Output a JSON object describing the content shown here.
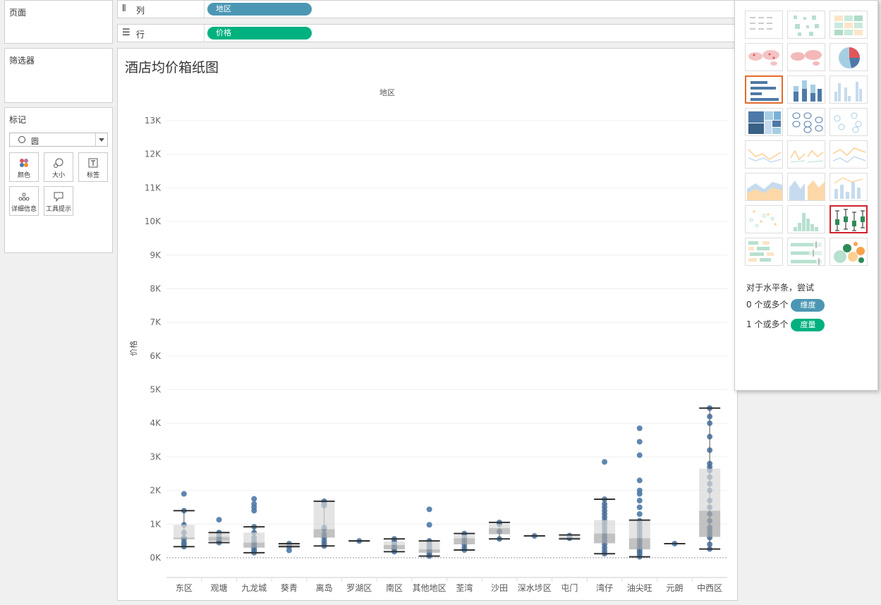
{
  "left_panels": {
    "pages": {
      "title": "页面"
    },
    "filters": {
      "title": "筛选器"
    },
    "marks": {
      "title": "标记",
      "type": "圆",
      "buttons": [
        {
          "label": "颜色",
          "icon": "color-icon"
        },
        {
          "label": "大小",
          "icon": "size-icon"
        },
        {
          "label": "标签",
          "icon": "label-icon"
        },
        {
          "label": "详细信息",
          "icon": "detail-icon"
        },
        {
          "label": "工具提示",
          "icon": "tooltip-icon"
        }
      ]
    }
  },
  "shelves": {
    "columns": {
      "label": "列",
      "pill": "地区"
    },
    "rows": {
      "label": "行",
      "pill": "价格"
    }
  },
  "worksheet": {
    "title": "酒店均价箱纸图"
  },
  "chart_data": {
    "type": "boxplot",
    "xlabel": "地区",
    "ylabel": "价格",
    "ylim": [
      -700,
      13500
    ],
    "yticks": [
      0,
      1000,
      2000,
      3000,
      4000,
      5000,
      6000,
      7000,
      8000,
      9000,
      10000,
      11000,
      12000,
      13000
    ],
    "ytick_labels": [
      "0K",
      "1K",
      "2K",
      "3K",
      "4K",
      "5K",
      "6K",
      "7K",
      "8K",
      "9K",
      "10K",
      "11K",
      "12K",
      "13K"
    ],
    "point_color": "#4e79a7",
    "categories": [
      "东区",
      "观塘",
      "九龙城",
      "葵青",
      "离岛",
      "罗湖区",
      "南区",
      "其他地区",
      "荃湾",
      "沙田",
      "深水埗区",
      "屯门",
      "湾仔",
      "油尖旺",
      "元朗",
      "中西区"
    ],
    "boxes": [
      {
        "min": 330,
        "q1": 550,
        "median": 600,
        "q3": 980,
        "max": 1400,
        "points": [
          330,
          400,
          450,
          550,
          600,
          750,
          980,
          1400,
          1900
        ]
      },
      {
        "min": 450,
        "q1": 500,
        "median": 620,
        "q3": 730,
        "max": 750,
        "points": [
          450,
          500,
          580,
          620,
          700,
          730,
          750,
          1130
        ]
      },
      {
        "min": 150,
        "q1": 300,
        "median": 450,
        "q3": 750,
        "max": 920,
        "points": [
          150,
          200,
          250,
          300,
          350,
          400,
          450,
          500,
          600,
          750,
          920,
          1400,
          1500,
          1600,
          1750
        ]
      },
      {
        "min": 330,
        "q1": 350,
        "median": 380,
        "q3": 410,
        "max": 420,
        "points": [
          220,
          330,
          380,
          420
        ]
      },
      {
        "min": 350,
        "q1": 600,
        "median": 850,
        "q3": 1650,
        "max": 1680,
        "points": [
          350,
          420,
          500,
          600,
          700,
          850,
          900,
          1550,
          1600,
          1650,
          1680
        ]
      },
      {
        "min": 500,
        "q1": 500,
        "median": 500,
        "q3": 500,
        "max": 500,
        "points": [
          500
        ]
      },
      {
        "min": 180,
        "q1": 250,
        "median": 380,
        "q3": 480,
        "max": 560,
        "points": [
          180,
          250,
          300,
          380,
          450,
          480,
          560
        ]
      },
      {
        "min": 50,
        "q1": 150,
        "median": 250,
        "q3": 480,
        "max": 500,
        "points": [
          50,
          100,
          150,
          200,
          250,
          300,
          350,
          400,
          480,
          500,
          980,
          1440
        ]
      },
      {
        "min": 230,
        "q1": 400,
        "median": 580,
        "q3": 680,
        "max": 720,
        "points": [
          230,
          300,
          400,
          500,
          580,
          680,
          720
        ]
      },
      {
        "min": 560,
        "q1": 700,
        "median": 880,
        "q3": 1000,
        "max": 1050,
        "points": [
          560,
          780,
          1000,
          1050
        ]
      },
      {
        "min": 650,
        "q1": 650,
        "median": 650,
        "q3": 650,
        "max": 650,
        "points": [
          650
        ]
      },
      {
        "min": 560,
        "q1": 580,
        "median": 600,
        "q3": 660,
        "max": 680,
        "points": [
          580,
          600,
          660
        ]
      },
      {
        "min": 120,
        "q1": 430,
        "median": 720,
        "q3": 1120,
        "max": 1740,
        "points": [
          120,
          200,
          300,
          400,
          500,
          600,
          700,
          800,
          900,
          1000,
          1100,
          1200,
          1300,
          1400,
          1500,
          1600,
          1740,
          2850
        ]
      },
      {
        "min": 30,
        "q1": 250,
        "median": 580,
        "q3": 1110,
        "max": 1120,
        "points": [
          30,
          100,
          150,
          200,
          250,
          300,
          400,
          500,
          600,
          700,
          800,
          900,
          1000,
          1100,
          1300,
          1500,
          1700,
          1900,
          2000,
          2300,
          3050,
          3450,
          3850
        ]
      },
      {
        "min": 420,
        "q1": 420,
        "median": 420,
        "q3": 420,
        "max": 420,
        "points": [
          420
        ]
      },
      {
        "min": 260,
        "q1": 620,
        "median": 1400,
        "q3": 2650,
        "max": 4450,
        "points": [
          260,
          400,
          600,
          700,
          800,
          900,
          1100,
          1300,
          1500,
          1700,
          2000,
          2200,
          2400,
          2600,
          2700,
          2800,
          3200,
          3600,
          4000,
          4200,
          4450
        ]
      }
    ]
  },
  "show_me": {
    "hint_title": "对于水平条，尝试",
    "hint_dim": "0 个或多个",
    "dim_pill": "维度",
    "hint_mea": "1 个或多个",
    "mea_pill": "度量",
    "thumbnails": [
      "text-table",
      "heat-map",
      "highlight-table",
      "symbol-map",
      "filled-map",
      "pie-chart",
      "horizontal-bars",
      "stacked-bars",
      "side-by-side-bars",
      "treemap",
      "circle-views",
      "side-by-side-circles",
      "continuous-lines",
      "discrete-lines",
      "dual-lines",
      "area-continuous",
      "area-discrete",
      "dual-combination",
      "scatter-plot",
      "histogram",
      "box-and-whisker",
      "gantt",
      "bullet-graph",
      "packed-bubbles"
    ],
    "selected_outline": "horizontal-bars",
    "hovered": "box-and-whisker"
  }
}
